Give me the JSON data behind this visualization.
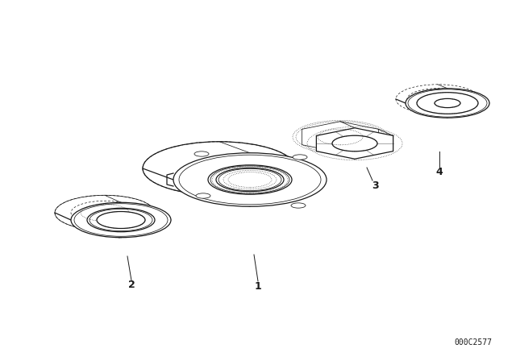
{
  "bg_color": "#ffffff",
  "line_color": "#1a1a1a",
  "fig_width": 6.4,
  "fig_height": 4.48,
  "dpi": 100,
  "part_number": "000C2577",
  "lw_solid": 0.9,
  "lw_thin": 0.55,
  "lw_dot": 0.5
}
